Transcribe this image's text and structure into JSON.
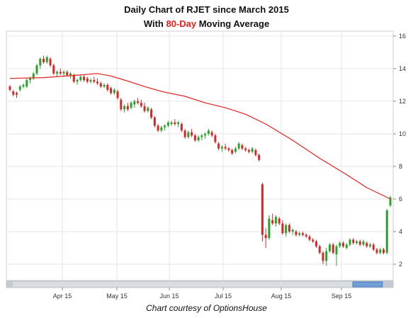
{
  "title": {
    "line1": "Daily Chart of RJET since March 2015",
    "line2_pre": "With ",
    "line2_accent": "80-Day",
    "line2_post": " Moving Average"
  },
  "caption": "Chart courtesy of OptionsHouse",
  "colors": {
    "up": "#2ca02c",
    "down": "#d62728",
    "moving_average": "#e8201c",
    "grid": "#e6e6e6",
    "accent": "#e8201c"
  },
  "chart_data": {
    "type": "line",
    "ylim": [
      1,
      16.3
    ],
    "y_ticks": [
      "2",
      "4",
      "6",
      "8",
      "10",
      "12",
      "14",
      "16"
    ],
    "x_ticks": [
      "Apr 15",
      "May 15",
      "Jun 15",
      "Jul 15",
      "Aug 15",
      "Sep 15"
    ],
    "grid": true,
    "series": [
      {
        "type": "candlestick",
        "values": [
          [
            0,
            12.9,
            13.0,
            12.6,
            12.7
          ],
          [
            1,
            12.6,
            12.7,
            12.3,
            12.4
          ],
          [
            2,
            12.5,
            12.6,
            12.2,
            12.4
          ],
          [
            3,
            12.7,
            13.0,
            12.6,
            12.9
          ],
          [
            4,
            12.9,
            13.1,
            12.8,
            13.0
          ],
          [
            5,
            12.9,
            13.4,
            12.8,
            13.3
          ],
          [
            6,
            13.3,
            13.5,
            13.1,
            13.4
          ],
          [
            7,
            13.4,
            13.8,
            13.3,
            13.7
          ],
          [
            8,
            13.7,
            14.3,
            13.6,
            14.2
          ],
          [
            9,
            14.2,
            14.7,
            14.0,
            14.6
          ],
          [
            10,
            14.6,
            14.8,
            14.3,
            14.4
          ],
          [
            11,
            14.4,
            14.8,
            14.3,
            14.7
          ],
          [
            12,
            14.6,
            14.7,
            14.1,
            14.2
          ],
          [
            13,
            14.2,
            14.3,
            13.6,
            13.7
          ],
          [
            14,
            13.7,
            13.9,
            13.5,
            13.8
          ],
          [
            15,
            13.8,
            14.0,
            13.6,
            13.7
          ],
          [
            16,
            13.7,
            13.9,
            13.5,
            13.8
          ],
          [
            17,
            13.8,
            13.9,
            13.5,
            13.6
          ],
          [
            18,
            13.6,
            13.8,
            13.4,
            13.7
          ],
          [
            19,
            13.6,
            13.7,
            13.1,
            13.2
          ],
          [
            20,
            13.2,
            13.4,
            13.0,
            13.3
          ],
          [
            21,
            13.3,
            13.6,
            13.2,
            13.5
          ],
          [
            22,
            13.5,
            13.6,
            13.2,
            13.3
          ],
          [
            23,
            13.4,
            13.5,
            13.1,
            13.2
          ],
          [
            24,
            13.2,
            13.4,
            13.1,
            13.3
          ],
          [
            25,
            13.3,
            13.5,
            13.1,
            13.2
          ],
          [
            26,
            13.2,
            13.4,
            13.0,
            13.1
          ],
          [
            27,
            13.1,
            13.2,
            12.8,
            12.9
          ],
          [
            28,
            12.9,
            13.1,
            12.8,
            13.0
          ],
          [
            29,
            13.0,
            13.1,
            12.6,
            12.7
          ],
          [
            30,
            12.8,
            12.9,
            12.4,
            12.5
          ],
          [
            31,
            12.5,
            12.8,
            12.4,
            12.7
          ],
          [
            32,
            12.6,
            12.7,
            12.1,
            12.2
          ],
          [
            33,
            12.1,
            12.2,
            11.4,
            11.5
          ],
          [
            34,
            11.5,
            11.8,
            11.3,
            11.7
          ],
          [
            35,
            11.7,
            11.9,
            11.4,
            11.5
          ],
          [
            36,
            11.6,
            12.0,
            11.5,
            11.9
          ],
          [
            37,
            11.8,
            12.1,
            11.6,
            12.0
          ],
          [
            38,
            12.0,
            12.2,
            11.8,
            11.9
          ],
          [
            39,
            11.9,
            12.1,
            11.6,
            11.7
          ],
          [
            40,
            11.7,
            11.9,
            11.3,
            11.4
          ],
          [
            41,
            11.4,
            11.7,
            11.3,
            11.6
          ],
          [
            42,
            11.5,
            11.6,
            10.9,
            11.0
          ],
          [
            43,
            11.0,
            11.1,
            10.4,
            10.5
          ],
          [
            44,
            10.5,
            10.6,
            10.1,
            10.2
          ],
          [
            45,
            10.2,
            10.5,
            10.1,
            10.4
          ],
          [
            46,
            10.4,
            10.6,
            10.2,
            10.5
          ],
          [
            47,
            10.5,
            10.8,
            10.4,
            10.7
          ],
          [
            48,
            10.6,
            10.8,
            10.5,
            10.7
          ],
          [
            49,
            10.7,
            10.9,
            10.5,
            10.6
          ],
          [
            50,
            10.6,
            10.8,
            10.4,
            10.7
          ],
          [
            51,
            10.6,
            10.7,
            10.1,
            10.2
          ],
          [
            52,
            10.2,
            10.3,
            9.7,
            9.8
          ],
          [
            53,
            9.8,
            10.2,
            9.7,
            10.1
          ],
          [
            54,
            10.1,
            10.3,
            9.8,
            9.9
          ],
          [
            55,
            9.9,
            10.0,
            9.5,
            9.6
          ],
          [
            56,
            9.6,
            9.9,
            9.5,
            9.8
          ],
          [
            57,
            9.8,
            10.0,
            9.6,
            9.9
          ],
          [
            58,
            9.9,
            10.1,
            9.7,
            10.0
          ],
          [
            59,
            10.0,
            10.3,
            9.9,
            10.2
          ],
          [
            60,
            10.1,
            10.2,
            9.8,
            9.9
          ],
          [
            61,
            9.9,
            10.0,
            9.4,
            9.5
          ],
          [
            62,
            9.4,
            9.5,
            9.0,
            9.1
          ],
          [
            63,
            9.1,
            9.3,
            8.9,
            9.2
          ],
          [
            64,
            9.2,
            9.4,
            9.0,
            9.1
          ],
          [
            65,
            9.1,
            9.2,
            8.9,
            9.0
          ],
          [
            66,
            9.0,
            9.1,
            8.7,
            8.8
          ],
          [
            67,
            8.9,
            9.2,
            8.8,
            9.1
          ],
          [
            68,
            9.1,
            9.5,
            9.0,
            9.4
          ],
          [
            69,
            9.3,
            9.4,
            9.0,
            9.1
          ],
          [
            70,
            9.1,
            9.2,
            8.9,
            9.0
          ],
          [
            71,
            9.0,
            9.1,
            8.8,
            8.9
          ],
          [
            72,
            8.9,
            9.2,
            8.8,
            9.1
          ],
          [
            73,
            9.0,
            9.1,
            8.6,
            8.7
          ],
          [
            74,
            8.7,
            8.8,
            8.3,
            8.4
          ],
          [
            75,
            6.9,
            7.0,
            3.4,
            3.8
          ],
          [
            76,
            3.8,
            4.2,
            3.0,
            3.6
          ],
          [
            77,
            3.6,
            5.0,
            3.5,
            4.8
          ],
          [
            78,
            4.7,
            5.1,
            4.4,
            4.5
          ],
          [
            79,
            4.5,
            5.0,
            4.3,
            4.9
          ],
          [
            80,
            4.8,
            4.9,
            4.4,
            4.5
          ],
          [
            81,
            4.5,
            4.7,
            3.8,
            3.9
          ],
          [
            82,
            3.9,
            4.5,
            3.7,
            4.4
          ],
          [
            83,
            4.4,
            4.5,
            3.9,
            4.0
          ],
          [
            84,
            4.0,
            4.2,
            3.8,
            4.1
          ],
          [
            85,
            4.0,
            4.1,
            3.7,
            3.8
          ],
          [
            86,
            3.8,
            4.0,
            3.7,
            3.9
          ],
          [
            87,
            3.9,
            4.0,
            3.7,
            3.8
          ],
          [
            88,
            3.8,
            3.9,
            3.6,
            3.7
          ],
          [
            89,
            3.7,
            3.8,
            3.4,
            3.5
          ],
          [
            90,
            3.5,
            3.6,
            3.3,
            3.4
          ],
          [
            91,
            3.4,
            3.5,
            3.0,
            3.1
          ],
          [
            92,
            3.1,
            3.2,
            2.6,
            2.7
          ],
          [
            93,
            2.7,
            2.8,
            2.0,
            2.2
          ],
          [
            94,
            2.2,
            3.0,
            1.9,
            2.8
          ],
          [
            95,
            2.8,
            3.3,
            2.7,
            3.2
          ],
          [
            96,
            3.2,
            3.3,
            2.6,
            2.7
          ],
          [
            97,
            2.6,
            3.2,
            1.9,
            3.1
          ],
          [
            98,
            3.1,
            3.4,
            3.0,
            3.3
          ],
          [
            99,
            3.3,
            3.4,
            3.0,
            3.1
          ],
          [
            100,
            3.0,
            3.3,
            2.9,
            3.2
          ],
          [
            101,
            3.2,
            3.6,
            3.1,
            3.5
          ],
          [
            102,
            3.5,
            3.6,
            3.2,
            3.3
          ],
          [
            103,
            3.3,
            3.5,
            3.2,
            3.4
          ],
          [
            104,
            3.4,
            3.5,
            3.1,
            3.2
          ],
          [
            105,
            3.2,
            3.5,
            3.1,
            3.4
          ],
          [
            106,
            3.3,
            3.4,
            3.0,
            3.1
          ],
          [
            107,
            3.1,
            3.3,
            3.0,
            3.2
          ],
          [
            108,
            3.2,
            3.3,
            2.8,
            2.9
          ],
          [
            109,
            2.9,
            3.0,
            2.6,
            2.7
          ],
          [
            110,
            2.7,
            3.0,
            2.6,
            2.9
          ],
          [
            111,
            2.9,
            3.0,
            2.6,
            2.7
          ],
          [
            112,
            2.7,
            5.4,
            2.6,
            5.3
          ],
          [
            113,
            5.6,
            6.2,
            5.5,
            6.1
          ]
        ]
      },
      {
        "type": "line",
        "name": "80-Day Moving Average",
        "x": [
          0,
          10,
          20,
          26,
          30,
          34,
          40,
          45,
          52,
          58,
          64,
          70,
          76,
          84,
          92,
          100,
          106,
          113
        ],
        "values": [
          13.4,
          13.45,
          13.6,
          13.7,
          13.55,
          13.3,
          12.9,
          12.6,
          12.3,
          11.9,
          11.6,
          11.2,
          10.6,
          9.6,
          8.5,
          7.5,
          6.7,
          6.0
        ]
      }
    ]
  }
}
